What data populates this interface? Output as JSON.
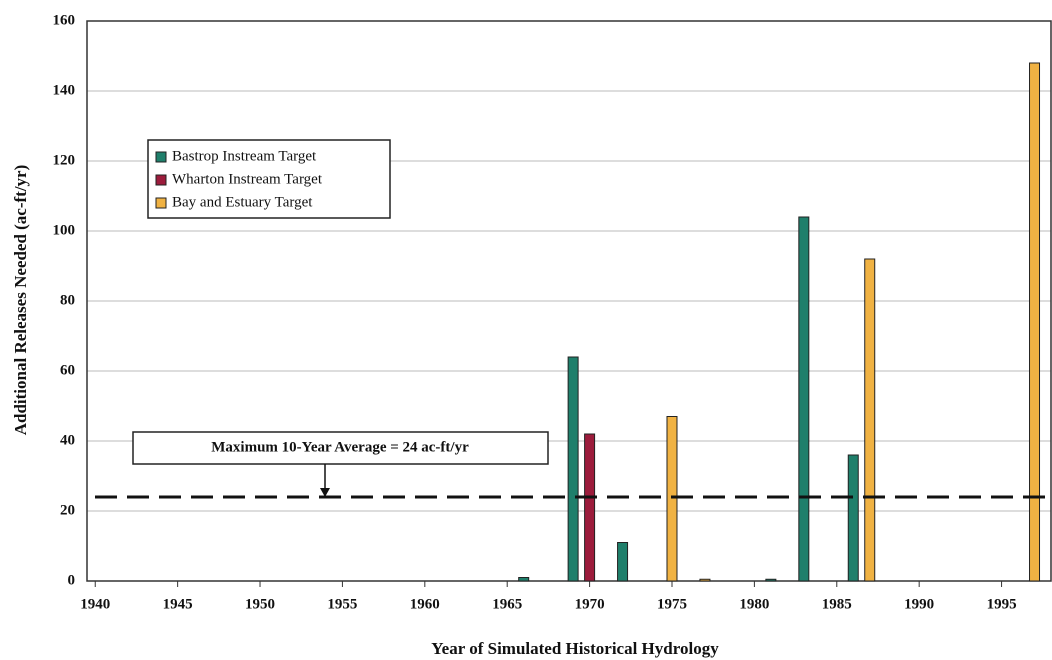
{
  "chart_data": {
    "type": "bar",
    "y_label": "Additional Releases Needed (ac-ft/yr)",
    "x_label": "Year of Simulated Historical Hydrology",
    "xlim": [
      1939.5,
      1998
    ],
    "xticks": [
      1940,
      1945,
      1950,
      1955,
      1960,
      1965,
      1970,
      1975,
      1980,
      1985,
      1990,
      1995
    ],
    "ylim": [
      0,
      160
    ],
    "yticks": [
      0,
      20,
      40,
      60,
      80,
      100,
      120,
      140,
      160
    ],
    "grid": true,
    "legend": "upper left",
    "series": [
      {
        "name": "Bastrop Instream Target",
        "color": "#1f7f6b",
        "x": [
          1966,
          1969,
          1972,
          1981,
          1983,
          1986
        ],
        "values": [
          1,
          64,
          11,
          0.5,
          104,
          36
        ]
      },
      {
        "name": "Wharton Instream Target",
        "color": "#9c1c3c",
        "x": [
          1970
        ],
        "values": [
          42
        ]
      },
      {
        "name": "Bay and Estuary Target",
        "color": "#f0b243",
        "x": [
          1975,
          1977,
          1987,
          1997
        ],
        "values": [
          47,
          0.5,
          92,
          148
        ]
      }
    ],
    "reference_line": {
      "value": 24,
      "label": "Maximum 10-Year Average = 24 ac-ft/yr"
    }
  }
}
